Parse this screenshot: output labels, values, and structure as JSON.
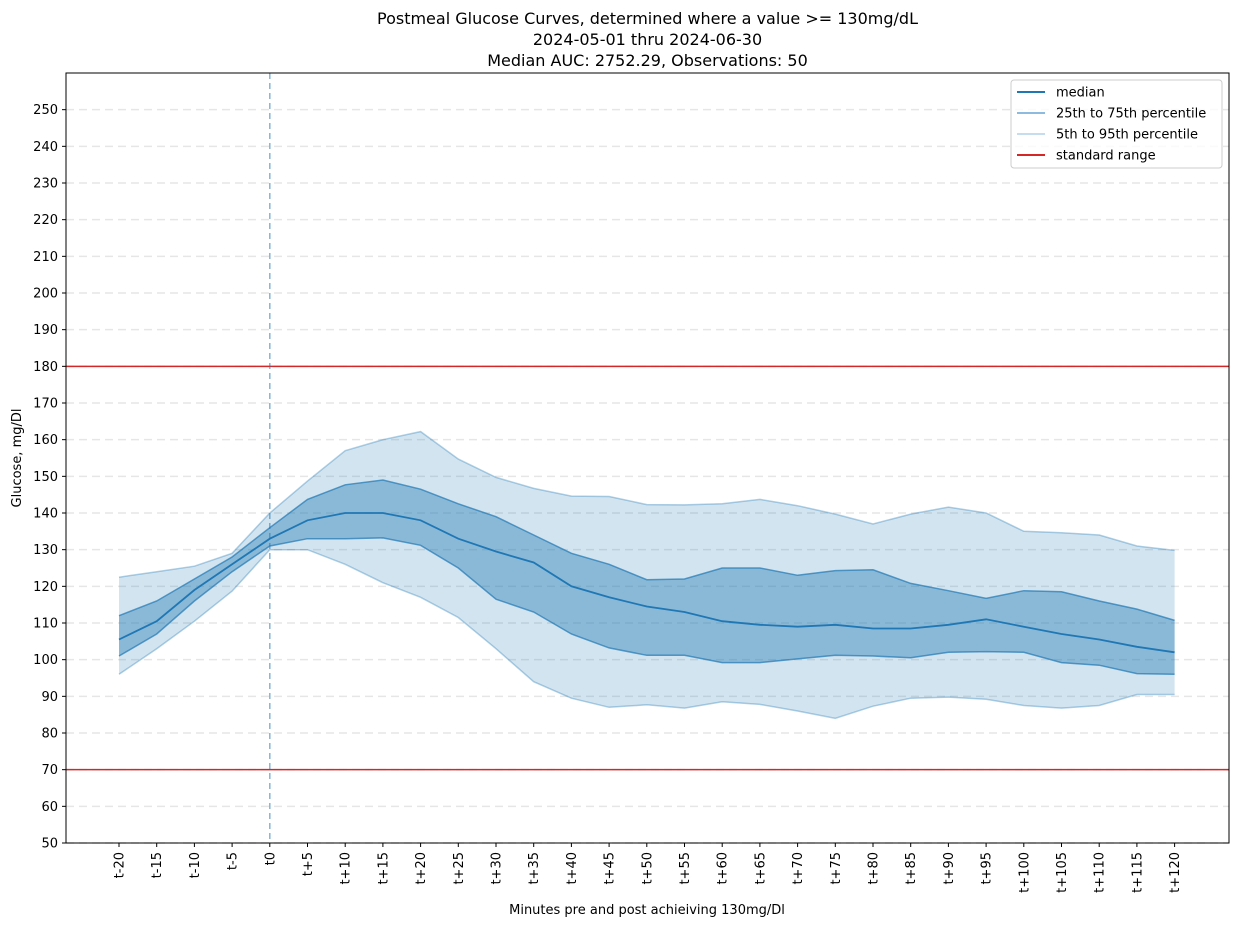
{
  "chart_data": {
    "type": "line",
    "title": "Postmeal Glucose Curves, determined where a value >= 130mg/dL",
    "subtitle": "2024-05-01 thru 2024-06-30",
    "subtitle2": "Median AUC: 2752.29, Observations: 50",
    "xlabel": "Minutes pre and post achieiving 130mg/Dl",
    "ylabel": "Glucose, mg/Dl",
    "ylim": [
      50,
      260
    ],
    "yticks": [
      50,
      60,
      70,
      80,
      90,
      100,
      110,
      120,
      130,
      140,
      150,
      160,
      170,
      180,
      190,
      200,
      210,
      220,
      230,
      240,
      250
    ],
    "grid": "horizontal dashed",
    "legend_position": "top-right",
    "categories": [
      "t-20",
      "t-15",
      "t-10",
      "t-5",
      "t0",
      "t+5",
      "t+10",
      "t+15",
      "t+20",
      "t+25",
      "t+30",
      "t+35",
      "t+40",
      "t+45",
      "t+50",
      "t+55",
      "t+60",
      "t+65",
      "t+70",
      "t+75",
      "t+80",
      "t+85",
      "t+90",
      "t+95",
      "t+100",
      "t+105",
      "t+110",
      "t+115",
      "t+120"
    ],
    "series": [
      {
        "name": "median",
        "values": [
          105.5,
          110.5,
          119,
          126,
          133,
          138,
          140,
          140,
          138,
          133,
          129.5,
          126.5,
          120,
          117,
          114.5,
          113,
          110.5,
          109.5,
          109,
          109.5,
          108.5,
          108.5,
          109.5,
          111,
          109,
          107,
          105.5,
          103.5,
          102
        ]
      },
      {
        "name": "25th percentile",
        "values": [
          101,
          107,
          116,
          124,
          131,
          133,
          133,
          133.2,
          131.2,
          125,
          116.5,
          113,
          107,
          103.2,
          101.2,
          101.2,
          99.2,
          99.2,
          100.2,
          101.2,
          101,
          100.5,
          102,
          102.2,
          102,
          99.2,
          98.5,
          96.2,
          96
        ]
      },
      {
        "name": "75th percentile",
        "values": [
          112,
          116,
          122,
          128,
          136,
          143.7,
          147.7,
          149,
          146.5,
          142.5,
          139,
          134,
          129,
          126,
          121.8,
          122,
          125,
          125,
          123,
          124.3,
          124.5,
          120.8,
          118.8,
          116.7,
          118.8,
          118.5,
          116,
          113.8,
          110.7
        ]
      },
      {
        "name": "5th percentile",
        "values": [
          96,
          103,
          110.5,
          118.7,
          130,
          130,
          126,
          121,
          117,
          111.5,
          103,
          94,
          89.5,
          87,
          87.7,
          86.8,
          88.5,
          87.8,
          86,
          84,
          87.3,
          89.5,
          89.8,
          89.2,
          87.5,
          86.8,
          87.5,
          90.5,
          90.5
        ]
      },
      {
        "name": "95th percentile",
        "values": [
          122.5,
          124,
          125.5,
          129,
          140,
          148.7,
          157,
          160,
          162.2,
          154.7,
          149.7,
          146.7,
          144.6,
          144.5,
          142.3,
          142.2,
          142.5,
          143.7,
          142,
          139.7,
          137,
          139.7,
          141.6,
          140,
          135,
          134.6,
          134,
          131,
          129.8
        ]
      }
    ],
    "reference_lines": [
      {
        "orientation": "horizontal",
        "value": 180,
        "color": "#d62728"
      },
      {
        "orientation": "horizontal",
        "value": 70,
        "color": "#d62728"
      },
      {
        "orientation": "vertical",
        "category": "t0",
        "color": "#1f77b4",
        "style": "dashed"
      }
    ],
    "legend": [
      {
        "label": "median",
        "color": "#1f77b4"
      },
      {
        "label": "25th to 75th percentile",
        "color": "#8dbbdf"
      },
      {
        "label": "5th to 95th percentile",
        "color": "#c6dcef"
      },
      {
        "label": "standard range",
        "color": "#d62728"
      }
    ]
  }
}
